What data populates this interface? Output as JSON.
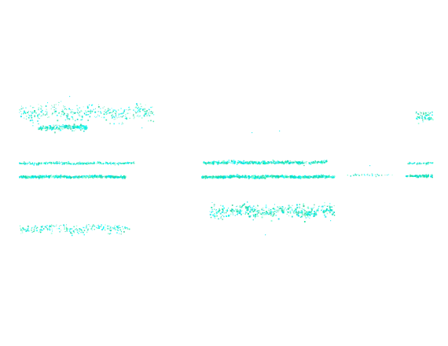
{
  "image": {
    "background_color": "#ffffff",
    "palette": [
      "#00e5ee",
      "#00dcc8",
      "#19e6a0",
      "#33cc99",
      "#7fffd4",
      "#00ffff"
    ],
    "streak_count": 12
  }
}
